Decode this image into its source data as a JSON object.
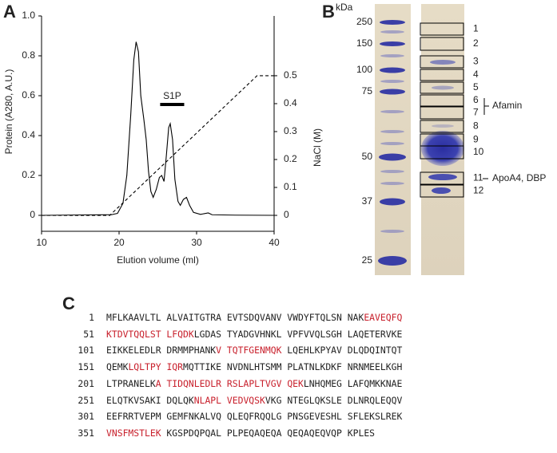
{
  "panel_labels": [
    "A",
    "B",
    "C"
  ],
  "chart_data": {
    "type": "line",
    "xlabel": "Elution volume (ml)",
    "ylabel": "Protein (A280, A.U.)",
    "y2label": "NaCl (M)",
    "xlim": [
      10,
      40
    ],
    "xticks": [
      10,
      20,
      30,
      40
    ],
    "ylim": [
      -0.08,
      1.0
    ],
    "yticks": [
      0,
      0.2,
      0.4,
      0.6,
      0.8,
      {
        "value": 1,
        "label": "1.0"
      }
    ],
    "y2lim": [
      -0.057,
      0.714
    ],
    "y2ticks": [
      0,
      0.1,
      0.2,
      0.3,
      0.4,
      0.5
    ],
    "series": [
      {
        "color": "#000000",
        "dashed": false,
        "x": [
          10,
          15,
          19,
          19.8,
          20.5,
          21,
          21.5,
          21.9,
          22.2,
          22.5,
          22.8,
          23.2,
          23.5,
          23.8,
          24.1,
          24.4,
          24.8,
          25.2,
          25.5,
          25.8,
          26.1,
          26.4,
          26.6,
          26.9,
          27.2,
          27.6,
          27.9,
          28.3,
          28.7,
          29.1,
          29.6,
          30.5,
          31.5,
          32,
          35,
          40
        ],
        "values": [
          0,
          0.002,
          0.003,
          0.01,
          0.06,
          0.2,
          0.5,
          0.78,
          0.87,
          0.82,
          0.6,
          0.48,
          0.38,
          0.22,
          0.12,
          0.09,
          0.13,
          0.19,
          0.2,
          0.17,
          0.3,
          0.44,
          0.46,
          0.38,
          0.18,
          0.07,
          0.05,
          0.08,
          0.09,
          0.05,
          0.015,
          0.005,
          0.012,
          0.003,
          0.001,
          0
        ]
      },
      {
        "color": "#000000",
        "dashed": true,
        "axis": "y2",
        "x": [
          10,
          18.8,
          37.8,
          40
        ],
        "values": [
          0,
          0,
          0.5,
          0.5
        ]
      }
    ],
    "annotations": [
      {
        "text": "S1P",
        "x": [
          25.3,
          28.4
        ]
      }
    ]
  },
  "gel": {
    "unit": "kDa",
    "markers": [
      250,
      150,
      100,
      75,
      50,
      37,
      25
    ],
    "bands": [
      1,
      2,
      3,
      4,
      5,
      6,
      7,
      8,
      9,
      10,
      11,
      12
    ],
    "band_labels": [
      "Afamin",
      "ApoA4, DBP"
    ]
  },
  "sequence": {
    "highlight_color": "#c8202c",
    "rows": [
      {
        "start": 1,
        "segments": [
          {
            "text": "MFLKAAVLTL ALVAITGTRA EVTSDQVANV VWDYFTQLSN NAK",
            "highlight": false
          },
          {
            "text": "EAVEQFQ",
            "highlight": true
          }
        ]
      },
      {
        "start": 51,
        "segments": [
          {
            "text": "KTDVTQQLST LFQDK",
            "highlight": true
          },
          {
            "text": "LGDAS TYADGVHNKL VPFVVQLSGH LAQETERVKE",
            "highlight": false
          }
        ]
      },
      {
        "start": 101,
        "segments": [
          {
            "text": "EIKKELEDLR DRMMPHANK",
            "highlight": false
          },
          {
            "text": "V TQTFGENMQK",
            "highlight": true
          },
          {
            "text": " LQEHLKPYAV DLQDQINTQT",
            "highlight": false
          }
        ]
      },
      {
        "start": 151,
        "segments": [
          {
            "text": "QEMK",
            "highlight": false
          },
          {
            "text": "LQLTPY IQR",
            "highlight": true
          },
          {
            "text": "MQTTIKE NVDNLHTSMM PLATNLKDKF NRNMEELKGH",
            "highlight": false
          }
        ]
      },
      {
        "start": 201,
        "segments": [
          {
            "text": "LTPRANELK",
            "highlight": false
          },
          {
            "text": "A TIDQNLEDLR RSLAPLTVGV QEK",
            "highlight": true
          },
          {
            "text": "LNHQMEG LAFQMKKNAE",
            "highlight": false
          }
        ]
      },
      {
        "start": 251,
        "segments": [
          {
            "text": "ELQTKVSAKI DQLQK",
            "highlight": false
          },
          {
            "text": "NLAPL VEDVQSK",
            "highlight": true
          },
          {
            "text": "VKG NTEGLQKSLE DLNRQLEQQV",
            "highlight": false
          }
        ]
      },
      {
        "start": 301,
        "segments": [
          {
            "text": "EEFRRTVEPM GEMFNKALVQ QLEQFRQQLG PNSGEVESHL SFLEKSLREK",
            "highlight": false
          }
        ]
      },
      {
        "start": 351,
        "segments": [
          {
            "text": "VNSFMSTLEK",
            "highlight": true
          },
          {
            "text": " KGSPDQPQAL PLPEQAQEQA QEQAQEQVQP KPLES",
            "highlight": false
          }
        ]
      }
    ]
  }
}
